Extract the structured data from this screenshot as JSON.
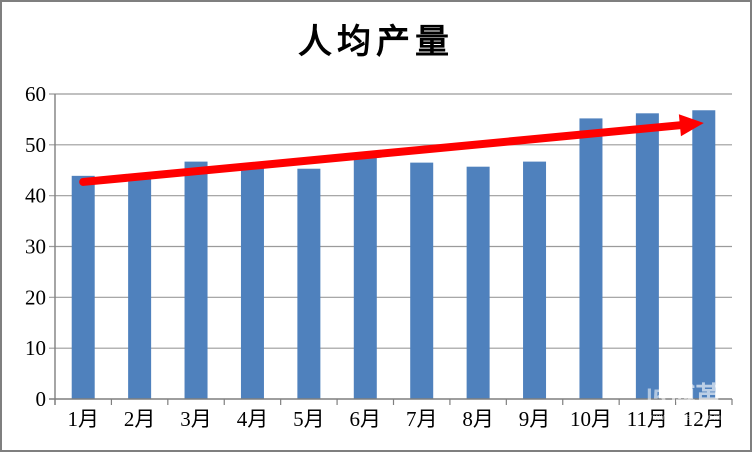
{
  "chart_data": {
    "type": "bar",
    "title": "人均产量",
    "categories": [
      "1月",
      "2月",
      "3月",
      "4月",
      "5月",
      "6月",
      "7月",
      "8月",
      "9月",
      "10月",
      "11月",
      "12月"
    ],
    "values": [
      43.9,
      44.2,
      46.7,
      45.6,
      45.3,
      47.5,
      46.5,
      45.7,
      46.7,
      55.2,
      56.2,
      56.8
    ],
    "xlabel": "",
    "ylabel": "",
    "ylim": [
      0,
      60
    ],
    "y_ticks": [
      0,
      10,
      20,
      30,
      40,
      50,
      60
    ],
    "grid": true,
    "legend": "none",
    "bar_color": "#4F81BD",
    "annotations": [
      {
        "type": "trend-arrow",
        "from_category": "1月",
        "to_category": "12月",
        "from_value": 42.7,
        "to_value": 54.3,
        "color": "#FF0000"
      }
    ]
  },
  "watermark": {
    "logo": "|5",
    "text": "博革",
    "url": "www.bigae.com"
  },
  "colors": {
    "background": "#FFFFFF",
    "border": "#7F7F7F",
    "grid": "#9B9B9B",
    "axis": "#7F7F7F",
    "text": "#000000",
    "bar": "#4F81BD",
    "arrow": "#FF0000"
  }
}
